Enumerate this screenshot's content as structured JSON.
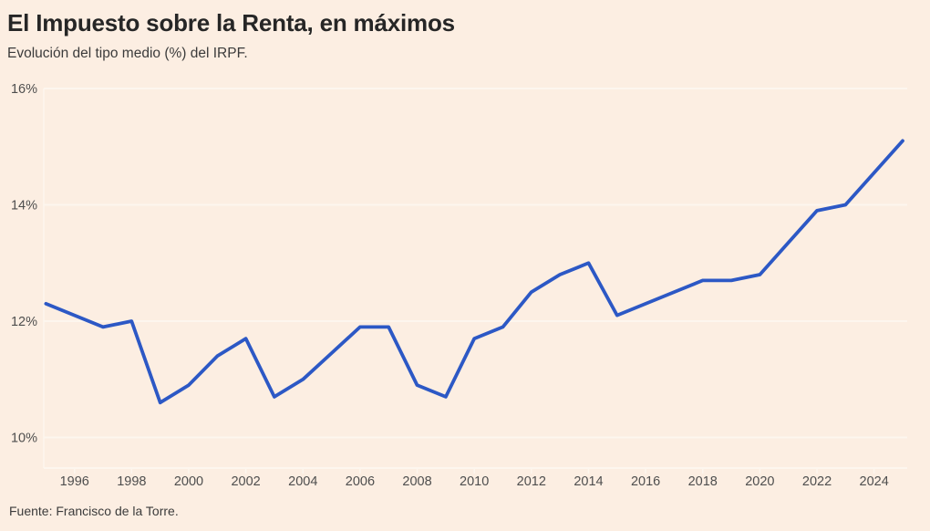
{
  "header": {
    "title": "El Impuesto sobre la Renta, en máximos",
    "subtitle": "Evolución del tipo medio (%) del IRPF."
  },
  "footer": {
    "source": "Fuente: Francisco de la Torre."
  },
  "chart_data": {
    "type": "line",
    "title": "El Impuesto sobre la Renta, en máximos",
    "subtitle": "Evolución del tipo medio (%) del IRPF.",
    "source": "Fuente: Francisco de la Torre.",
    "series": [
      {
        "name": "Tipo medio IRPF (%)",
        "x": [
          1995,
          1996,
          1997,
          1998,
          1999,
          2000,
          2001,
          2002,
          2003,
          2004,
          2005,
          2006,
          2007,
          2008,
          2009,
          2010,
          2011,
          2012,
          2013,
          2014,
          2015,
          2016,
          2017,
          2018,
          2019,
          2020,
          2021,
          2022,
          2023,
          2024,
          2025
        ],
        "values": [
          12.3,
          12.1,
          11.9,
          12.0,
          10.6,
          10.9,
          11.4,
          11.7,
          10.7,
          11.0,
          11.45,
          11.9,
          11.9,
          10.9,
          10.7,
          11.7,
          11.9,
          12.5,
          12.8,
          13.0,
          12.1,
          12.3,
          12.5,
          12.7,
          12.7,
          12.8,
          13.35,
          13.9,
          14.0,
          14.55,
          15.1
        ]
      }
    ],
    "xticks": [
      1996,
      1998,
      2000,
      2002,
      2004,
      2006,
      2008,
      2010,
      2012,
      2014,
      2016,
      2018,
      2020,
      2022,
      2024
    ],
    "yticks": [
      10,
      12,
      14,
      16
    ],
    "ytick_labels": [
      "10%",
      "12%",
      "14%",
      "16%"
    ],
    "xlim": [
      1994.9,
      2025.2
    ],
    "ylim": [
      9.48,
      16.19
    ],
    "grid": "horizontal-only",
    "legend": "none",
    "colors": {
      "line": "#2c58c5",
      "background": "#fceee2",
      "gridline": "#fdf6ee",
      "axis_label": "#4e4e4e",
      "title": "#262626",
      "text": "#3b3b3b"
    }
  }
}
